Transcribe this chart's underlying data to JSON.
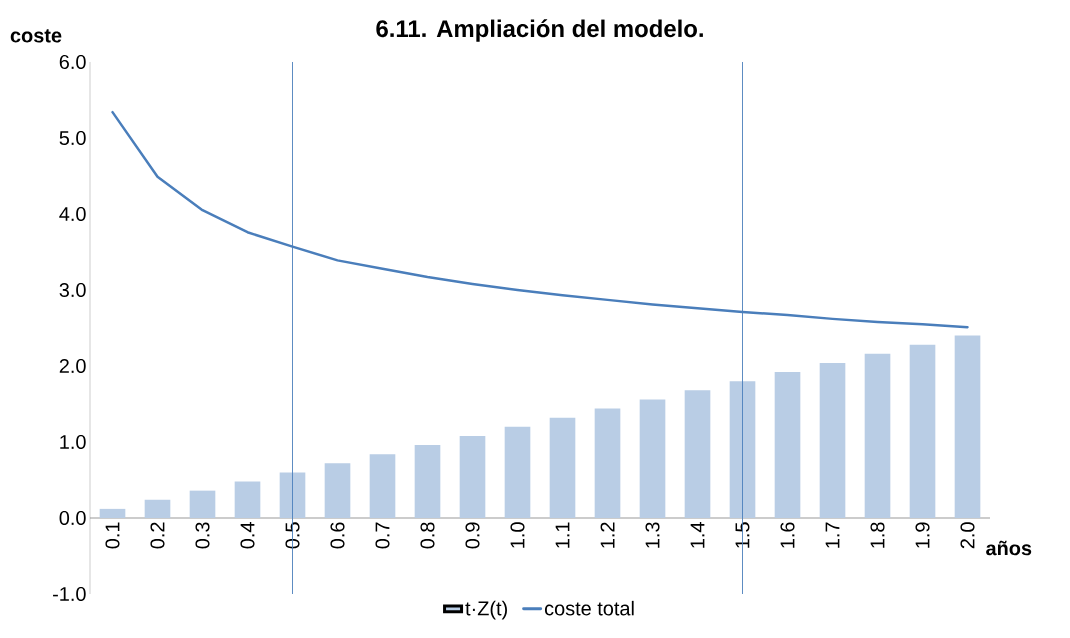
{
  "chart_data": {
    "type": "bar",
    "title": "6.11. Ampliación del modelo.",
    "xlabel": "años",
    "ylabel": "coste",
    "categories": [
      "0.1",
      "0.2",
      "0.3",
      "0.4",
      "0.5",
      "0.6",
      "0.7",
      "0.8",
      "0.9",
      "1.0",
      "1.1",
      "1.2",
      "1.3",
      "1.4",
      "1.5",
      "1.6",
      "1.7",
      "1.8",
      "1.9",
      "2.0"
    ],
    "series": [
      {
        "name": "t·Z(t)",
        "color": "#b9cde5",
        "values": [
          0.12,
          0.24,
          0.36,
          0.48,
          0.6,
          0.72,
          0.84,
          0.96,
          1.08,
          1.2,
          1.32,
          1.44,
          1.56,
          1.68,
          1.8,
          1.92,
          2.04,
          2.16,
          2.28,
          2.4
        ]
      },
      {
        "name": "coste total",
        "type": "line",
        "color": "#4a7ebb",
        "values": [
          5.34,
          4.49,
          4.05,
          3.76,
          3.57,
          3.39,
          3.28,
          3.17,
          3.08,
          3.0,
          2.93,
          2.87,
          2.81,
          2.76,
          2.71,
          2.67,
          2.62,
          2.58,
          2.55,
          2.51
        ]
      }
    ],
    "ylim": [
      -1.0,
      6.0
    ],
    "yticks": [
      {
        "value": -1,
        "label": "-1.0"
      },
      {
        "value": 0,
        "label": "0.0"
      },
      {
        "value": 1,
        "label": "1.0"
      },
      {
        "value": 2,
        "label": "2.0"
      },
      {
        "value": 3,
        "label": "3.0"
      },
      {
        "value": 4,
        "label": "4.0"
      },
      {
        "value": 5,
        "label": "5.0"
      },
      {
        "value": 6,
        "label": "6.0"
      }
    ],
    "ref_lines": [
      {
        "axis": "x",
        "value": "0.5",
        "color": "#4a7ebb"
      },
      {
        "axis": "x",
        "value": "1.5",
        "color": "#4a7ebb"
      }
    ],
    "grid": false,
    "legend": "bottom"
  }
}
